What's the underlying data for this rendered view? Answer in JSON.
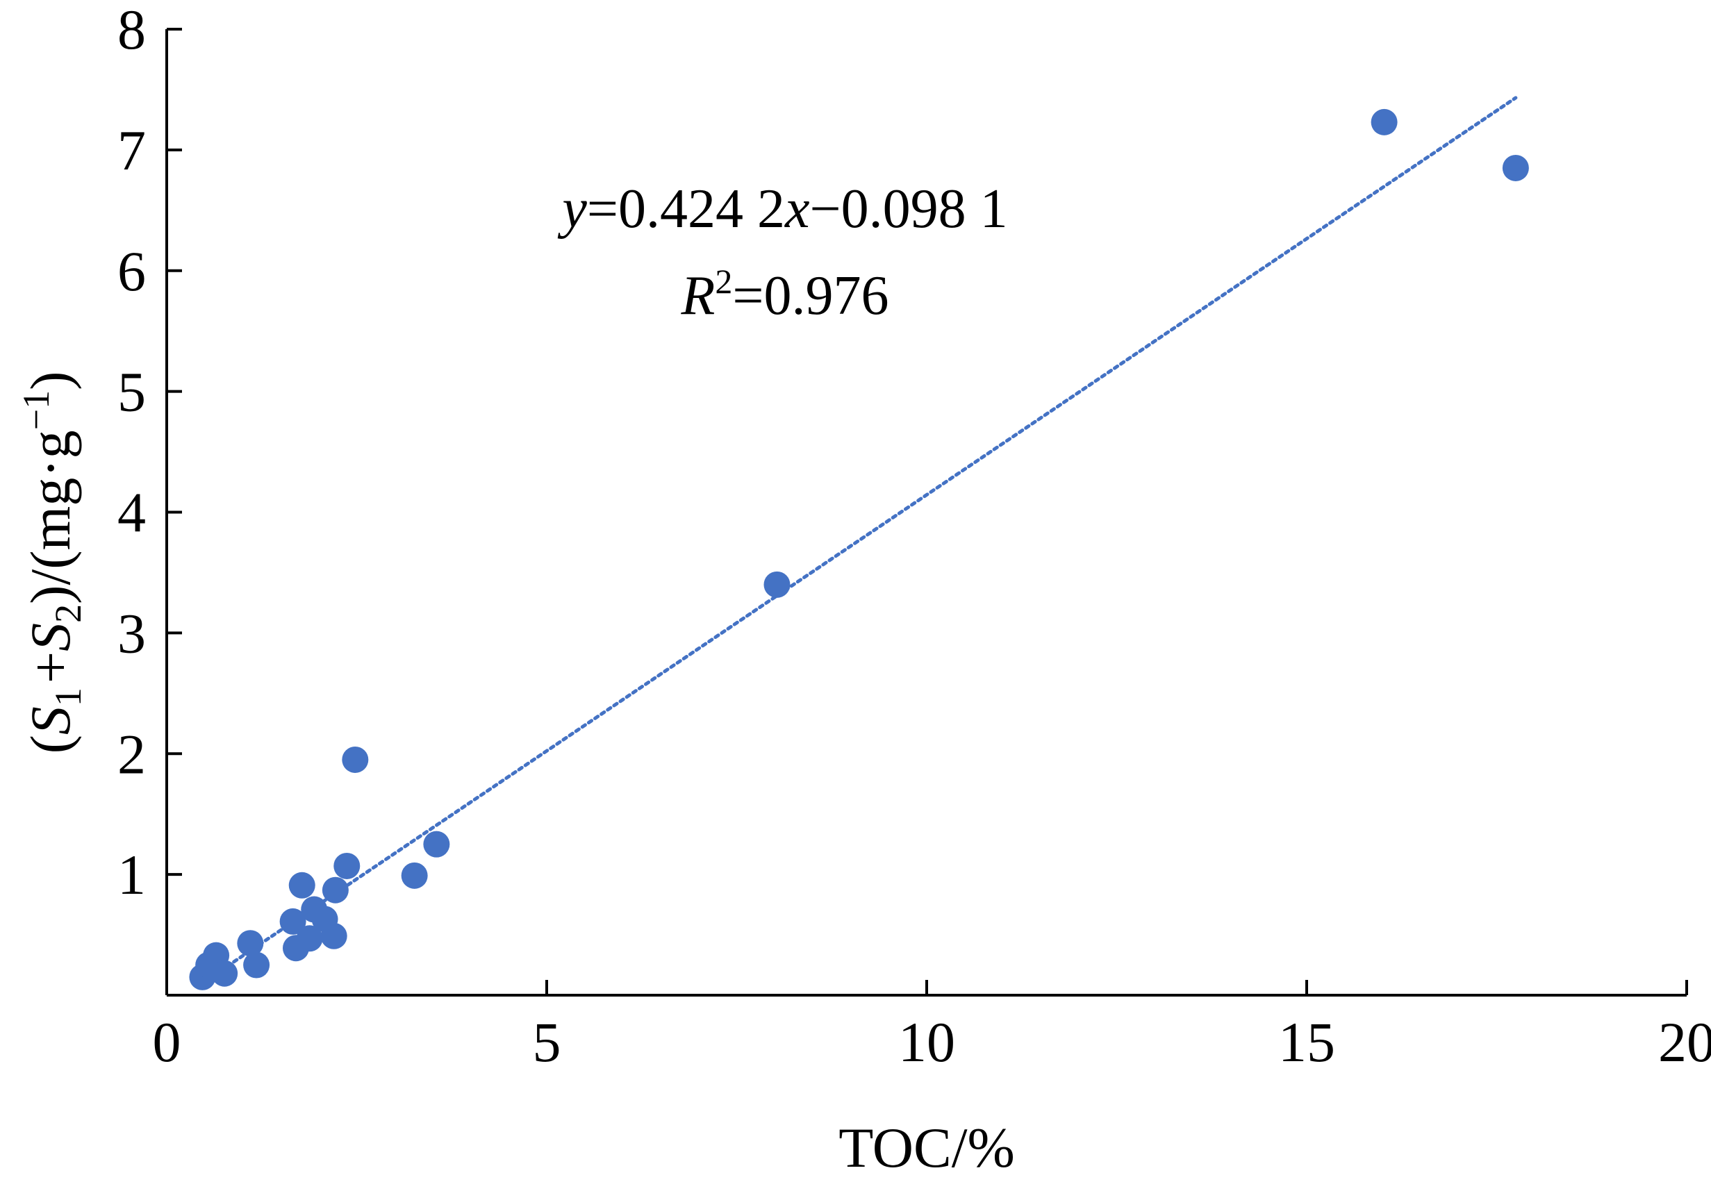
{
  "chart_data": {
    "type": "scatter",
    "xlabel": "TOC/%",
    "ylabel": {
      "open": "(",
      "s1": "S",
      "s1_sub": "1",
      "plus": "+",
      "s2": "S",
      "s2_sub": "2",
      "rest": ")/(mg·g",
      "sup": "−1",
      "close": ")"
    },
    "xlim": [
      0,
      20
    ],
    "ylim": [
      0,
      8
    ],
    "x_ticks": [
      0,
      5,
      10,
      15,
      20
    ],
    "y_ticks": [
      1,
      2,
      3,
      4,
      5,
      6,
      7,
      8
    ],
    "x_tick_labels": [
      "0",
      "5",
      "10",
      "15",
      "20"
    ],
    "y_tick_labels": [
      "1",
      "2",
      "3",
      "4",
      "5",
      "6",
      "7",
      "8"
    ],
    "grid": false,
    "marker_color": "#4472C4",
    "trend_color": "#4472C4",
    "points": [
      {
        "x": 0.47,
        "y": 0.15
      },
      {
        "x": 0.55,
        "y": 0.25
      },
      {
        "x": 0.65,
        "y": 0.33
      },
      {
        "x": 0.76,
        "y": 0.18
      },
      {
        "x": 1.1,
        "y": 0.43
      },
      {
        "x": 1.18,
        "y": 0.25
      },
      {
        "x": 1.66,
        "y": 0.61
      },
      {
        "x": 1.7,
        "y": 0.39
      },
      {
        "x": 1.78,
        "y": 0.91
      },
      {
        "x": 1.88,
        "y": 0.47
      },
      {
        "x": 1.94,
        "y": 0.71
      },
      {
        "x": 2.08,
        "y": 0.63
      },
      {
        "x": 2.2,
        "y": 0.49
      },
      {
        "x": 2.22,
        "y": 0.87
      },
      {
        "x": 2.37,
        "y": 1.07
      },
      {
        "x": 2.48,
        "y": 1.95
      },
      {
        "x": 3.26,
        "y": 0.99
      },
      {
        "x": 3.55,
        "y": 1.25
      },
      {
        "x": 8.03,
        "y": 3.4
      },
      {
        "x": 16.02,
        "y": 7.23
      },
      {
        "x": 17.75,
        "y": 6.85
      }
    ],
    "trendline": {
      "slope": 0.4242,
      "intercept": -0.0981,
      "x_range": [
        0.55,
        17.75
      ],
      "style": "dotted"
    },
    "annotation": {
      "eq_y": "y",
      "eq_mid": "=0.424 2",
      "eq_x": "x",
      "eq_tail": "−0.098 1",
      "r_letter": "R",
      "r_sup": "2",
      "r_value": "=0.976"
    }
  }
}
